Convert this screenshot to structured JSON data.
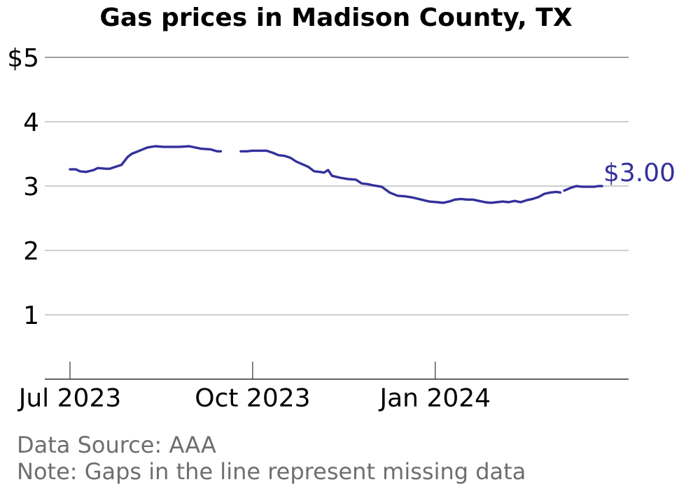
{
  "chart_data": {
    "type": "line",
    "title": "Gas prices in Madison County, TX",
    "xlabel": "",
    "ylabel": "",
    "x_axis": {
      "type": "date",
      "range": [
        "2023-07-01",
        "2024-03-25"
      ],
      "ticks": [
        {
          "date": "2023-07-01",
          "label": "Jul 2023"
        },
        {
          "date": "2023-10-01",
          "label": "Oct 2023"
        },
        {
          "date": "2024-01-01",
          "label": "Jan 2024"
        }
      ]
    },
    "y_axis": {
      "range": [
        0,
        5
      ],
      "ticks": [
        {
          "value": 1,
          "label": "1"
        },
        {
          "value": 2,
          "label": "2"
        },
        {
          "value": 3,
          "label": "3"
        },
        {
          "value": 4,
          "label": "4"
        },
        {
          "value": 5,
          "label": "$5"
        }
      ]
    },
    "grid": true,
    "series": [
      {
        "color": "#33309b",
        "segments": [
          [
            [
              "2023-07-01",
              3.26
            ],
            [
              "2023-07-04",
              3.26
            ],
            [
              "2023-07-06",
              3.23
            ],
            [
              "2023-07-09",
              3.22
            ],
            [
              "2023-07-13",
              3.25
            ],
            [
              "2023-07-15",
              3.28
            ],
            [
              "2023-07-19",
              3.27
            ],
            [
              "2023-07-21",
              3.27
            ],
            [
              "2023-07-24",
              3.3
            ],
            [
              "2023-07-27",
              3.33
            ],
            [
              "2023-07-30",
              3.45
            ],
            [
              "2023-08-01",
              3.5
            ],
            [
              "2023-08-05",
              3.55
            ],
            [
              "2023-08-09",
              3.6
            ],
            [
              "2023-08-13",
              3.62
            ],
            [
              "2023-08-17",
              3.61
            ],
            [
              "2023-08-25",
              3.61
            ],
            [
              "2023-08-30",
              3.62
            ],
            [
              "2023-09-05",
              3.58
            ],
            [
              "2023-09-10",
              3.57
            ],
            [
              "2023-09-13",
              3.54
            ],
            [
              "2023-09-15",
              3.54
            ]
          ],
          [
            [
              "2023-09-25",
              3.54
            ],
            [
              "2023-09-28",
              3.54
            ],
            [
              "2023-10-01",
              3.55
            ],
            [
              "2023-10-05",
              3.55
            ],
            [
              "2023-10-08",
              3.55
            ],
            [
              "2023-10-11",
              3.52
            ],
            [
              "2023-10-14",
              3.48
            ],
            [
              "2023-10-17",
              3.47
            ],
            [
              "2023-10-20",
              3.44
            ],
            [
              "2023-10-23",
              3.38
            ],
            [
              "2023-10-26",
              3.34
            ],
            [
              "2023-10-29",
              3.3
            ],
            [
              "2023-11-01",
              3.23
            ],
            [
              "2023-11-04",
              3.22
            ],
            [
              "2023-11-06",
              3.21
            ],
            [
              "2023-11-08",
              3.25
            ],
            [
              "2023-11-10",
              3.16
            ],
            [
              "2023-11-14",
              3.13
            ],
            [
              "2023-11-18",
              3.11
            ],
            [
              "2023-11-22",
              3.1
            ],
            [
              "2023-11-25",
              3.04
            ],
            [
              "2023-11-28",
              3.03
            ],
            [
              "2023-12-01",
              3.01
            ],
            [
              "2023-12-05",
              2.99
            ],
            [
              "2023-12-09",
              2.9
            ],
            [
              "2023-12-13",
              2.85
            ],
            [
              "2023-12-17",
              2.84
            ],
            [
              "2023-12-21",
              2.82
            ],
            [
              "2023-12-25",
              2.79
            ],
            [
              "2023-12-29",
              2.76
            ],
            [
              "2024-01-02",
              2.75
            ],
            [
              "2024-01-05",
              2.74
            ],
            [
              "2024-01-08",
              2.76
            ],
            [
              "2024-01-11",
              2.79
            ],
            [
              "2024-01-14",
              2.8
            ],
            [
              "2024-01-17",
              2.79
            ],
            [
              "2024-01-20",
              2.79
            ],
            [
              "2024-01-23",
              2.77
            ],
            [
              "2024-01-26",
              2.75
            ],
            [
              "2024-01-29",
              2.74
            ],
            [
              "2024-02-01",
              2.75
            ],
            [
              "2024-02-04",
              2.76
            ],
            [
              "2024-02-07",
              2.75
            ],
            [
              "2024-02-10",
              2.77
            ],
            [
              "2024-02-13",
              2.75
            ],
            [
              "2024-02-16",
              2.78
            ],
            [
              "2024-02-19",
              2.8
            ],
            [
              "2024-02-22",
              2.83
            ],
            [
              "2024-02-25",
              2.88
            ],
            [
              "2024-02-28",
              2.9
            ],
            [
              "2024-03-02",
              2.91
            ],
            [
              "2024-03-04",
              2.9
            ]
          ],
          [
            [
              "2024-03-06",
              2.93
            ],
            [
              "2024-03-09",
              2.97
            ],
            [
              "2024-03-12",
              3.0
            ],
            [
              "2024-03-15",
              2.99
            ],
            [
              "2024-03-18",
              2.99
            ],
            [
              "2024-03-21",
              2.99
            ],
            [
              "2024-03-23",
              3.0
            ],
            [
              "2024-03-25",
              3.0
            ]
          ]
        ],
        "end_label": "$3.00"
      }
    ],
    "footnotes": [
      "Data Source: AAA",
      "Note: Gaps in the line represent missing data"
    ]
  }
}
